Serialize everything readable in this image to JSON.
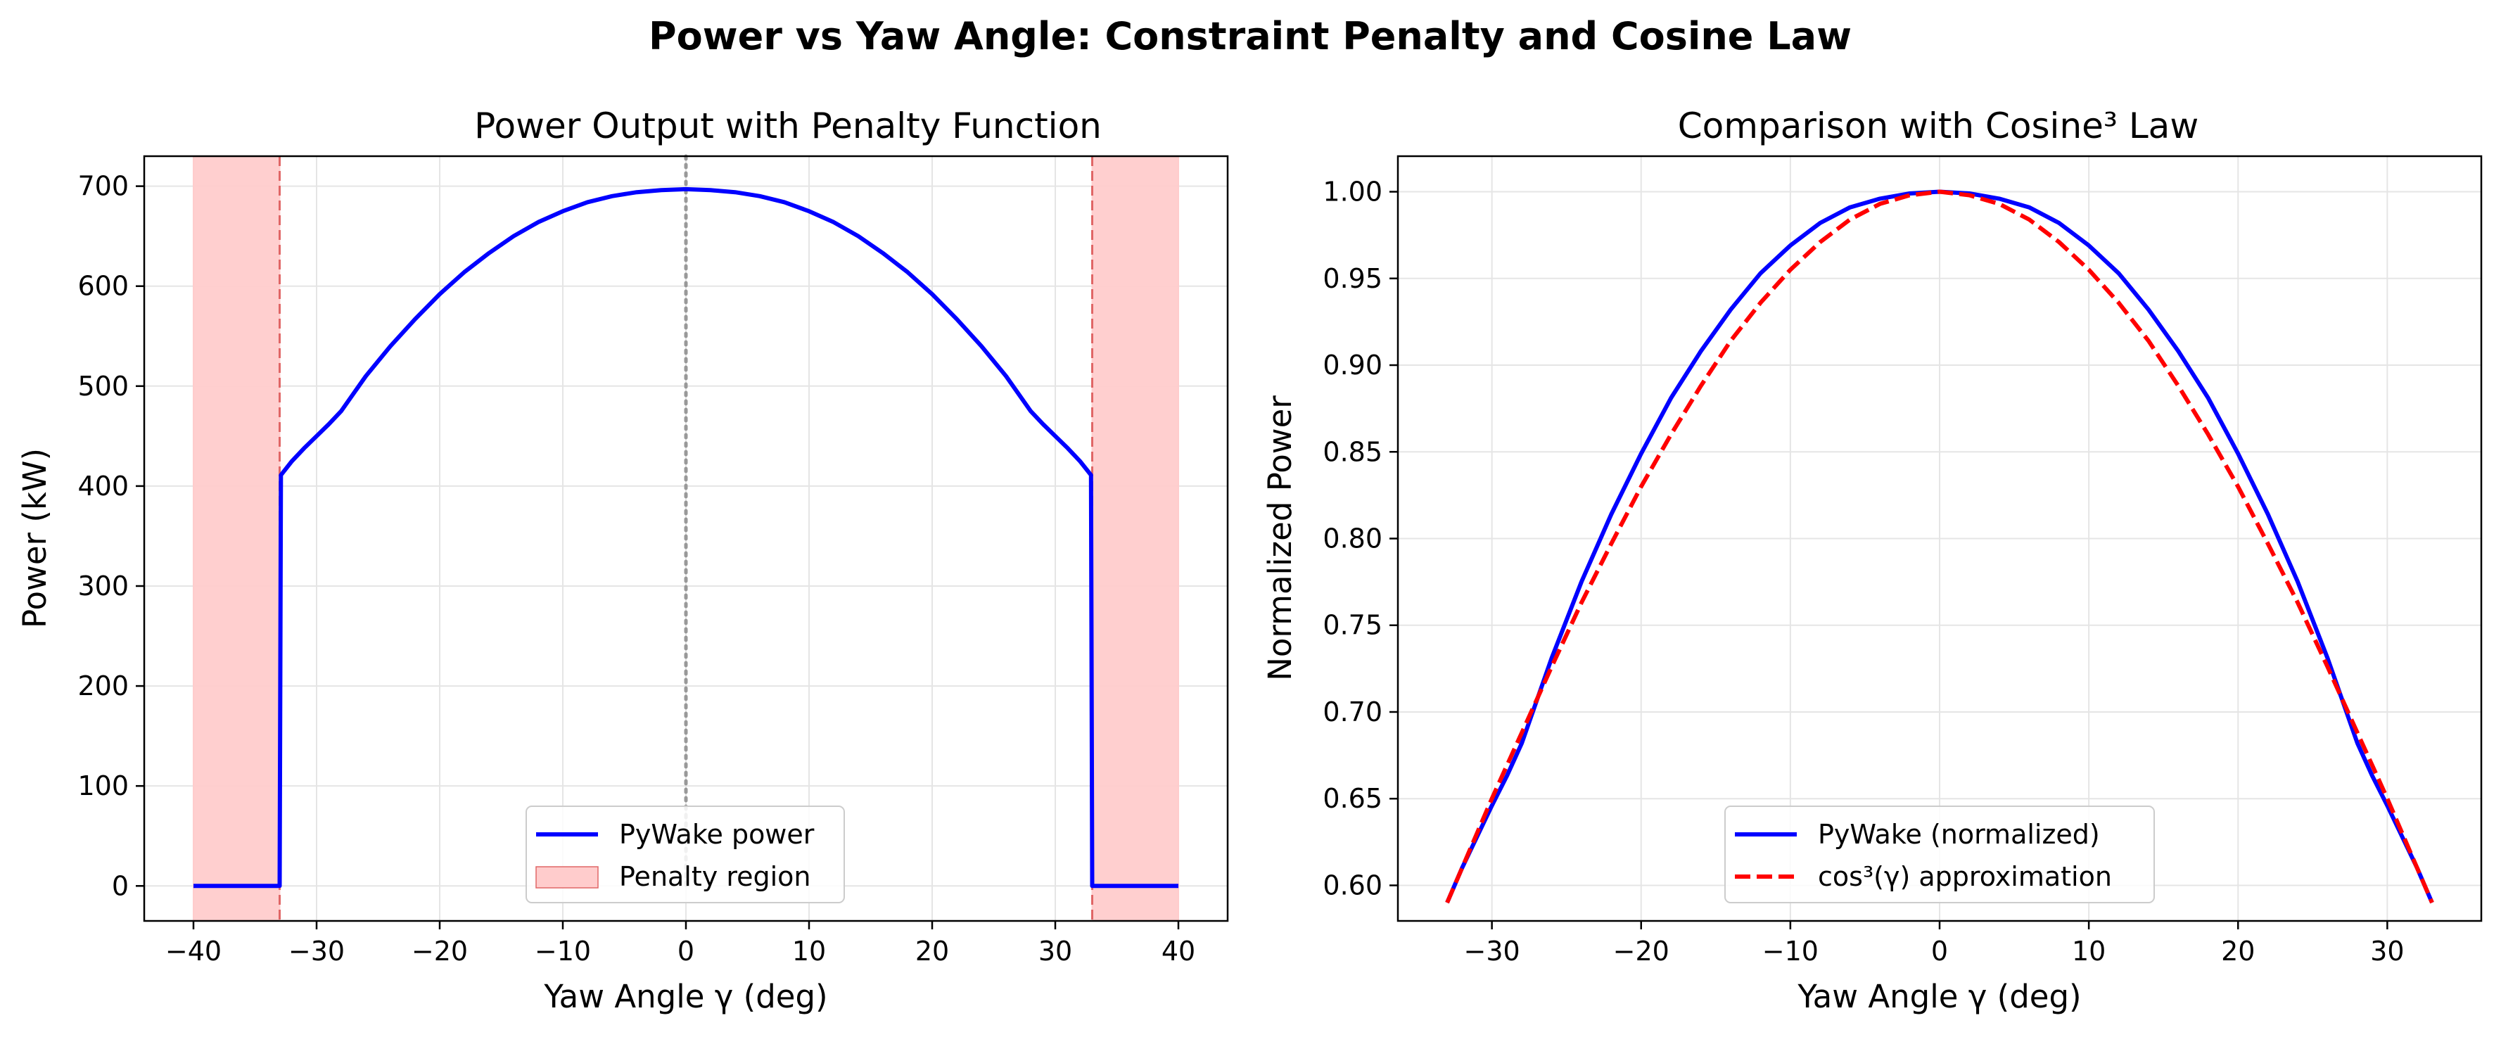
{
  "figure": {
    "suptitle": "Power vs Yaw Angle: Constraint Penalty and Cosine Law"
  },
  "colors": {
    "pywake": "#0000ff",
    "cosine": "#ff0000",
    "penalty_fill": "#ffcccc",
    "penalty_edge": "#e06666",
    "zero_line": "#999999",
    "grid": "#e5e5e5"
  },
  "chart_data": [
    {
      "type": "line",
      "title": "Power Output with Penalty Function",
      "xlabel": "Yaw Angle γ (deg)",
      "ylabel": "Power (kW)",
      "xlim": [
        -44,
        44
      ],
      "ylim": [
        -35,
        730
      ],
      "xticks": [
        -40,
        -30,
        -20,
        -10,
        0,
        10,
        20,
        30,
        40
      ],
      "yticks": [
        0,
        100,
        200,
        300,
        400,
        500,
        600,
        700
      ],
      "xtick_labels": [
        "−40",
        "−30",
        "−20",
        "−10",
        "0",
        "10",
        "20",
        "30",
        "40"
      ],
      "ytick_labels": [
        "0",
        "100",
        "200",
        "300",
        "400",
        "500",
        "600",
        "700"
      ],
      "grid": true,
      "legend_position": "lower-center",
      "penalty_regions": [
        [
          -40,
          -33
        ],
        [
          33,
          40
        ]
      ],
      "penalty_boundaries": [
        -33,
        33
      ],
      "zero_marker_x": 0,
      "series": [
        {
          "name": "PyWake power",
          "color": "#0000ff",
          "x": [
            -40,
            -33,
            -32.9,
            -32,
            -31,
            -30,
            -29,
            -28,
            -26,
            -24,
            -22,
            -20,
            -18,
            -16,
            -14,
            -12,
            -10,
            -8,
            -6,
            -4,
            -2,
            0,
            2,
            4,
            6,
            8,
            10,
            12,
            14,
            16,
            18,
            20,
            22,
            24,
            26,
            28,
            29,
            30,
            31,
            32,
            32.9,
            33,
            40
          ],
          "y": [
            0,
            0,
            411,
            425,
            438,
            450,
            462,
            475,
            510,
            540,
            567,
            592,
            614,
            633,
            650,
            664,
            675,
            684,
            690,
            694,
            696,
            697,
            696,
            694,
            690,
            684,
            675,
            664,
            650,
            633,
            614,
            592,
            567,
            540,
            510,
            475,
            462,
            450,
            438,
            425,
            411,
            0,
            0
          ]
        }
      ],
      "legend": [
        {
          "label": "PyWake power",
          "kind": "line",
          "color": "#0000ff"
        },
        {
          "label": "Penalty region",
          "kind": "patch",
          "color": "#ffcccc"
        }
      ]
    },
    {
      "type": "line",
      "title": "Comparison with Cosine³ Law",
      "xlabel": "Yaw Angle γ (deg)",
      "ylabel": "Normalized Power",
      "xlim": [
        -36.3,
        36.3
      ],
      "ylim": [
        0.5795,
        1.0205
      ],
      "xticks": [
        -30,
        -20,
        -10,
        0,
        10,
        20,
        30
      ],
      "yticks": [
        0.6,
        0.65,
        0.7,
        0.75,
        0.8,
        0.85,
        0.9,
        0.95,
        1.0
      ],
      "xtick_labels": [
        "−30",
        "−20",
        "−10",
        "0",
        "10",
        "20",
        "30"
      ],
      "ytick_labels": [
        "0.60",
        "0.65",
        "0.70",
        "0.75",
        "0.80",
        "0.85",
        "0.90",
        "0.95",
        "1.00"
      ],
      "grid": true,
      "legend_position": "lower-center",
      "series": [
        {
          "name": "PyWake (normalized)",
          "color": "#0000ff",
          "style": "solid",
          "x": [
            -33,
            -32,
            -31,
            -30,
            -29,
            -28,
            -26,
            -24,
            -22,
            -20,
            -18,
            -16,
            -14,
            -12,
            -10,
            -8,
            -6,
            -4,
            -2,
            0,
            2,
            4,
            6,
            8,
            10,
            12,
            14,
            16,
            18,
            20,
            22,
            24,
            26,
            28,
            29,
            30,
            31,
            32,
            33
          ],
          "y": [
            0.59,
            0.61,
            0.628,
            0.646,
            0.663,
            0.682,
            0.731,
            0.775,
            0.814,
            0.849,
            0.881,
            0.908,
            0.932,
            0.953,
            0.969,
            0.982,
            0.991,
            0.996,
            0.999,
            1.0,
            0.999,
            0.996,
            0.991,
            0.982,
            0.969,
            0.953,
            0.932,
            0.908,
            0.881,
            0.849,
            0.814,
            0.775,
            0.731,
            0.682,
            0.663,
            0.646,
            0.628,
            0.61,
            0.59
          ]
        },
        {
          "name": "cos³(γ) approximation",
          "color": "#ff0000",
          "style": "dashed",
          "x": [
            -33,
            -32,
            -31,
            -30,
            -29,
            -28,
            -26,
            -24,
            -22,
            -20,
            -18,
            -16,
            -14,
            -12,
            -10,
            -8,
            -6,
            -4,
            -2,
            0,
            2,
            4,
            6,
            8,
            10,
            12,
            14,
            16,
            18,
            20,
            22,
            24,
            26,
            28,
            29,
            30,
            31,
            32,
            33
          ],
          "y": [
            0.59,
            0.61,
            0.63,
            0.65,
            0.669,
            0.688,
            0.726,
            0.763,
            0.797,
            0.83,
            0.86,
            0.888,
            0.914,
            0.936,
            0.955,
            0.971,
            0.984,
            0.993,
            0.998,
            1.0,
            0.998,
            0.993,
            0.984,
            0.971,
            0.955,
            0.936,
            0.914,
            0.888,
            0.86,
            0.83,
            0.797,
            0.763,
            0.726,
            0.688,
            0.669,
            0.65,
            0.63,
            0.61,
            0.59
          ]
        }
      ],
      "legend": [
        {
          "label": "PyWake (normalized)",
          "kind": "line",
          "color": "#0000ff"
        },
        {
          "label": "cos³(γ) approximation",
          "kind": "dashed",
          "color": "#ff0000"
        }
      ]
    }
  ]
}
